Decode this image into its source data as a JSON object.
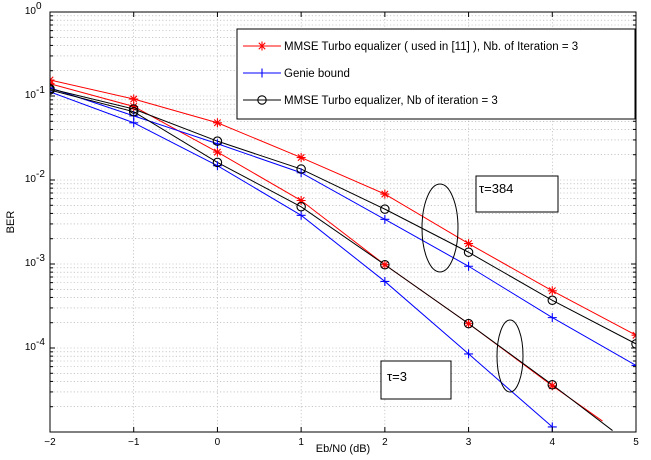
{
  "chart_data": {
    "type": "line",
    "xlabel": "Eb/N0 (dB)",
    "ylabel": "BER",
    "xlim": [
      -2,
      5
    ],
    "ylim": [
      1e-05,
      1
    ],
    "yscale": "log",
    "grid": true,
    "legend_position": "top-right",
    "x_ticks": [
      "−2",
      "−1",
      "0",
      "1",
      "2",
      "3",
      "4",
      "5"
    ],
    "y_ticks": [
      {
        "base": "10",
        "exp": "0"
      },
      {
        "base": "10",
        "exp": "-1"
      },
      {
        "base": "10",
        "exp": "-2"
      },
      {
        "base": "10",
        "exp": "-3"
      },
      {
        "base": "10",
        "exp": "-4"
      }
    ],
    "series": [
      {
        "name": "MMSE Turbo equalizer ( used in [11] ), Nb. of Iteration = 3",
        "marker": "star",
        "color": "#ff0000",
        "x": [
          -2,
          -1,
          0,
          1,
          2,
          3,
          4,
          5
        ],
        "y": [
          0.155,
          0.092,
          0.048,
          0.0185,
          0.0068,
          0.00175,
          0.00048,
          0.000142
        ]
      },
      {
        "name": "MMSE Turbo equalizer ( used in [11] ), Nb. of Iteration = 3",
        "marker": "star",
        "color": "#ff0000",
        "x": [
          -2,
          -1,
          0,
          1,
          2,
          3,
          4,
          4.6
        ],
        "y": [
          0.14,
          0.075,
          0.0215,
          0.0057,
          0.00098,
          0.000195,
          3.55e-05,
          1.35e-05
        ]
      },
      {
        "name": "Genie bound",
        "marker": "plus",
        "color": "#0000ff",
        "x": [
          -2,
          -1,
          0,
          1,
          2,
          3,
          4,
          5
        ],
        "y": [
          0.125,
          0.058,
          0.027,
          0.0122,
          0.0034,
          0.00094,
          0.00023,
          6.2e-05
        ]
      },
      {
        "name": "Genie bound",
        "marker": "plus",
        "color": "#0000ff",
        "x": [
          -2,
          -1,
          0,
          1,
          2,
          3,
          4
        ],
        "y": [
          0.112,
          0.048,
          0.0148,
          0.0038,
          0.00062,
          8.5e-05,
          1.15e-05
        ]
      },
      {
        "name": "MMSE Turbo equalizer, Nb of iteration = 3",
        "marker": "circle",
        "color": "#000000",
        "x": [
          -2,
          -1,
          0,
          1,
          2,
          3,
          4,
          5
        ],
        "y": [
          0.122,
          0.07,
          0.029,
          0.0135,
          0.0045,
          0.00138,
          0.00037,
          0.000112
        ]
      },
      {
        "name": "MMSE Turbo equalizer, Nb of iteration = 3",
        "marker": "circle",
        "color": "#000000",
        "x": [
          -2,
          -1,
          0,
          1,
          2,
          3,
          4,
          4.72
        ],
        "y": [
          0.118,
          0.065,
          0.0162,
          0.0048,
          0.00098,
          0.000195,
          3.65e-05,
          1.04e-05
        ]
      }
    ],
    "legend": [
      {
        "label": "MMSE Turbo equalizer ( used in [11] ), Nb. of Iteration = 3",
        "marker": "star",
        "color": "#ff0000"
      },
      {
        "label": "Genie bound",
        "marker": "plus",
        "color": "#0000ff"
      },
      {
        "label": "MMSE Turbo equalizer, Nb of iteration = 3",
        "marker": "circle",
        "color": "#000000"
      }
    ],
    "annotations": [
      {
        "text": "τ=384",
        "x": 3.2,
        "y": 0.0085
      },
      {
        "text": "τ=3",
        "x": 2.15,
        "y": 2.8e-05
      }
    ]
  }
}
